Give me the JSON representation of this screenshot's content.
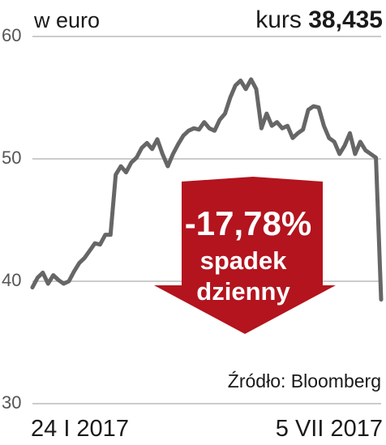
{
  "chart_data": {
    "type": "line",
    "unit_label": "w euro",
    "price_label": "kurs",
    "price_value": "38,435",
    "annotation": [
      "-17,78%",
      "spadek",
      "dzienny"
    ],
    "source": "Źródło: Bloomberg",
    "categories": [
      "24 I 2017",
      null,
      null,
      null,
      null,
      null,
      null,
      null,
      null,
      null,
      null,
      null,
      null,
      null,
      null,
      null,
      null,
      null,
      null,
      null,
      null,
      null,
      null,
      null,
      null,
      null,
      null,
      null,
      null,
      null,
      null,
      null,
      null,
      null,
      null,
      null,
      null,
      null,
      null,
      null,
      null,
      null,
      null,
      null,
      null,
      null,
      null,
      null,
      null,
      null,
      null,
      null,
      null,
      null,
      null,
      null,
      null,
      null,
      null,
      null,
      null,
      null,
      null,
      null,
      null,
      null,
      null,
      "5 VII 2017"
    ],
    "series": [
      {
        "color": "#666666",
        "values": [
          39.5,
          40.3,
          40.7,
          39.8,
          40.5,
          40.1,
          39.8,
          40.0,
          40.8,
          41.5,
          41.9,
          42.5,
          43.1,
          43.0,
          43.8,
          43.8,
          48.7,
          49.4,
          48.9,
          49.7,
          50.1,
          50.9,
          51.3,
          50.8,
          51.6,
          50.4,
          49.4,
          50.4,
          51.2,
          51.9,
          52.3,
          52.5,
          52.4,
          53.0,
          52.5,
          52.3,
          53.2,
          53.7,
          55.0,
          56.0,
          56.4,
          55.7,
          56.5,
          55.7,
          52.5,
          53.7,
          52.7,
          53.0,
          52.5,
          52.7,
          51.7,
          52.1,
          52.4,
          54.0,
          54.3,
          54.2,
          52.7,
          51.7,
          51.4,
          50.4,
          51.1,
          52.1,
          50.4,
          51.4,
          50.7,
          50.4,
          50.1,
          38.5
        ]
      }
    ],
    "ylim": [
      30,
      60
    ],
    "yticks": [
      30,
      40,
      50,
      60
    ],
    "grid": true
  }
}
